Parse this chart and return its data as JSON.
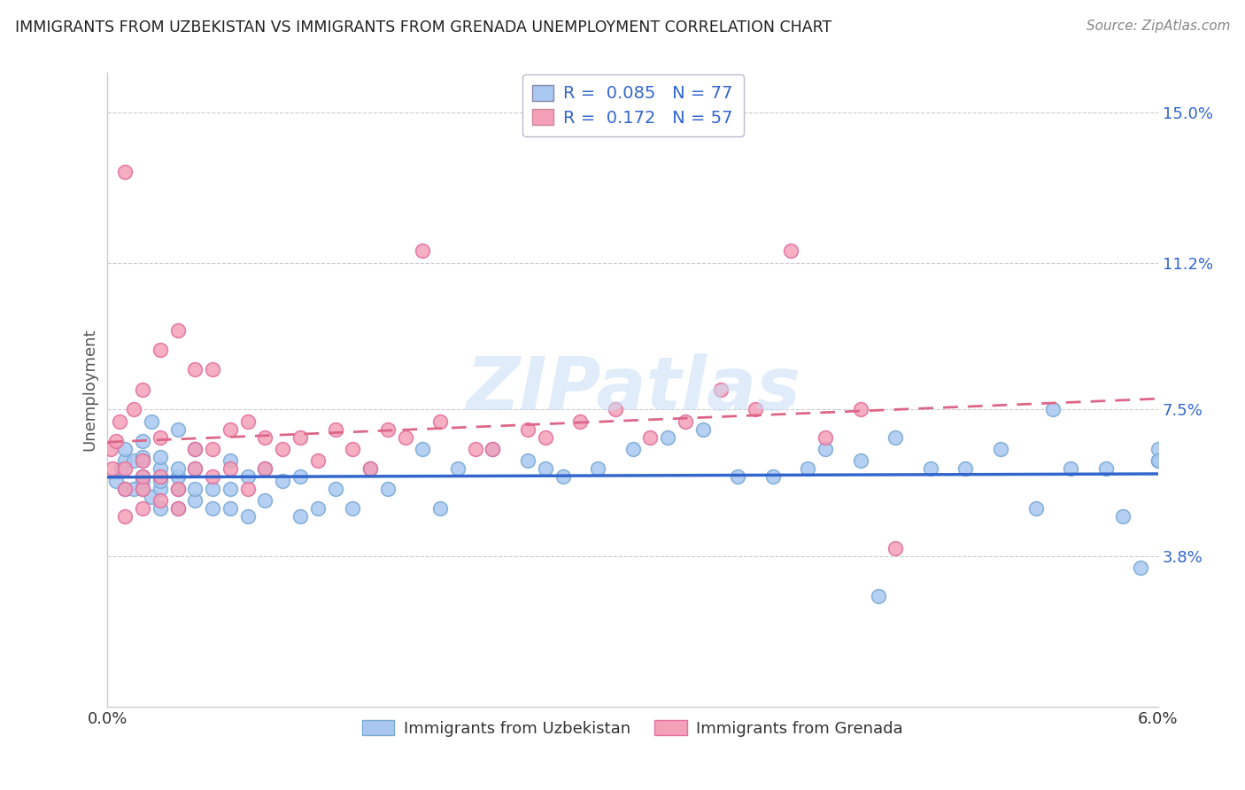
{
  "title": "IMMIGRANTS FROM UZBEKISTAN VS IMMIGRANTS FROM GRENADA UNEMPLOYMENT CORRELATION CHART",
  "source": "Source: ZipAtlas.com",
  "ylabel": "Unemployment",
  "xlim": [
    0.0,
    0.06
  ],
  "ylim": [
    0.0,
    0.16
  ],
  "ytick_values": [
    0.038,
    0.075,
    0.112,
    0.15
  ],
  "ytick_labels": [
    "3.8%",
    "7.5%",
    "11.2%",
    "15.0%"
  ],
  "xtick_values": [
    0.0,
    0.01,
    0.02,
    0.03,
    0.04,
    0.05,
    0.06
  ],
  "xtick_labels": [
    "0.0%",
    "",
    "",
    "",
    "",
    "",
    "6.0%"
  ],
  "series1_color": "#a8c8f0",
  "series2_color": "#f4a0b8",
  "series1_edge_color": "#7baad4",
  "series2_edge_color": "#e070a0",
  "series1_label": "Immigrants from Uzbekistan",
  "series2_label": "Immigrants from Grenada",
  "series1_R": 0.085,
  "series1_N": 77,
  "series2_R": 0.172,
  "series2_N": 57,
  "series1_line_color": "#3366cc",
  "series2_line_color": "#dd6688",
  "watermark": "ZIPatlas",
  "legend_R_color": "#3366cc",
  "legend_N_color": "#3366cc",
  "series1_x": [
    0.0005,
    0.0008,
    0.001,
    0.001,
    0.001,
    0.0015,
    0.0015,
    0.002,
    0.002,
    0.002,
    0.002,
    0.002,
    0.002,
    0.0025,
    0.0025,
    0.003,
    0.003,
    0.003,
    0.003,
    0.003,
    0.003,
    0.004,
    0.004,
    0.004,
    0.004,
    0.004,
    0.005,
    0.005,
    0.005,
    0.005,
    0.006,
    0.006,
    0.007,
    0.007,
    0.007,
    0.008,
    0.008,
    0.009,
    0.009,
    0.01,
    0.011,
    0.011,
    0.012,
    0.013,
    0.014,
    0.015,
    0.016,
    0.018,
    0.019,
    0.02,
    0.022,
    0.024,
    0.025,
    0.026,
    0.028,
    0.03,
    0.032,
    0.034,
    0.036,
    0.038,
    0.04,
    0.041,
    0.043,
    0.044,
    0.045,
    0.047,
    0.049,
    0.051,
    0.053,
    0.054,
    0.055,
    0.057,
    0.058,
    0.059,
    0.06,
    0.06,
    0.06
  ],
  "series1_y": [
    0.057,
    0.06,
    0.062,
    0.055,
    0.065,
    0.055,
    0.062,
    0.055,
    0.057,
    0.058,
    0.062,
    0.063,
    0.067,
    0.053,
    0.072,
    0.05,
    0.055,
    0.057,
    0.058,
    0.06,
    0.063,
    0.05,
    0.055,
    0.058,
    0.06,
    0.07,
    0.052,
    0.055,
    0.06,
    0.065,
    0.05,
    0.055,
    0.05,
    0.055,
    0.062,
    0.048,
    0.058,
    0.052,
    0.06,
    0.057,
    0.048,
    0.058,
    0.05,
    0.055,
    0.05,
    0.06,
    0.055,
    0.065,
    0.05,
    0.06,
    0.065,
    0.062,
    0.06,
    0.058,
    0.06,
    0.065,
    0.068,
    0.07,
    0.058,
    0.058,
    0.06,
    0.065,
    0.062,
    0.028,
    0.068,
    0.06,
    0.06,
    0.065,
    0.05,
    0.075,
    0.06,
    0.06,
    0.048,
    0.035,
    0.062,
    0.065,
    0.062
  ],
  "series2_x": [
    0.0002,
    0.0003,
    0.0005,
    0.0007,
    0.001,
    0.001,
    0.001,
    0.001,
    0.0015,
    0.002,
    0.002,
    0.002,
    0.002,
    0.002,
    0.003,
    0.003,
    0.003,
    0.003,
    0.004,
    0.004,
    0.004,
    0.005,
    0.005,
    0.005,
    0.006,
    0.006,
    0.006,
    0.007,
    0.007,
    0.008,
    0.008,
    0.009,
    0.009,
    0.01,
    0.011,
    0.012,
    0.013,
    0.014,
    0.015,
    0.016,
    0.017,
    0.018,
    0.019,
    0.021,
    0.022,
    0.024,
    0.025,
    0.027,
    0.029,
    0.031,
    0.033,
    0.035,
    0.037,
    0.039,
    0.041,
    0.043,
    0.045
  ],
  "series2_y": [
    0.065,
    0.06,
    0.067,
    0.072,
    0.048,
    0.055,
    0.06,
    0.135,
    0.075,
    0.05,
    0.055,
    0.058,
    0.062,
    0.08,
    0.052,
    0.058,
    0.068,
    0.09,
    0.05,
    0.055,
    0.095,
    0.06,
    0.065,
    0.085,
    0.058,
    0.065,
    0.085,
    0.06,
    0.07,
    0.055,
    0.072,
    0.068,
    0.06,
    0.065,
    0.068,
    0.062,
    0.07,
    0.065,
    0.06,
    0.07,
    0.068,
    0.115,
    0.072,
    0.065,
    0.065,
    0.07,
    0.068,
    0.072,
    0.075,
    0.068,
    0.072,
    0.08,
    0.075,
    0.115,
    0.068,
    0.075,
    0.04
  ]
}
